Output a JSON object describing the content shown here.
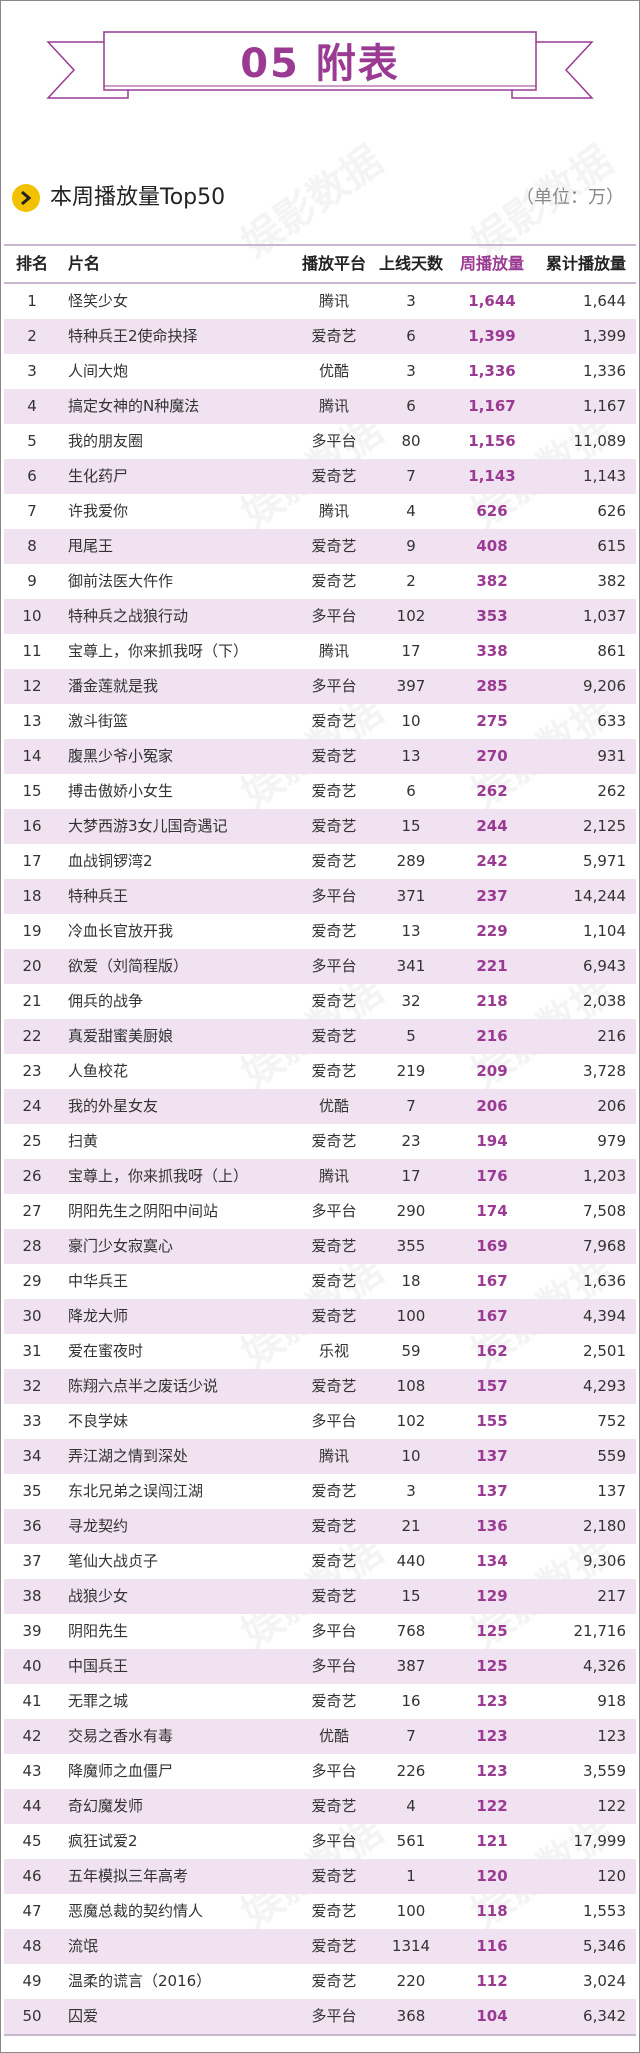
{
  "header": {
    "title": "05 附表"
  },
  "section": {
    "title": "本周播放量Top50",
    "unit": "（单位：万）"
  },
  "watermark": "娱影数据",
  "colors": {
    "accent": "#9b3a92",
    "row_alt": "#f0e2f1",
    "arrow": "#f2c200"
  },
  "table": {
    "columns": [
      "排名",
      "片名",
      "播放平台",
      "上线天数",
      "周播放量",
      "累计播放量"
    ],
    "rows": [
      [
        "1",
        "怪笑少女",
        "腾讯",
        "3",
        "1,644",
        "1,644"
      ],
      [
        "2",
        "特种兵王2使命抉择",
        "爱奇艺",
        "6",
        "1,399",
        "1,399"
      ],
      [
        "3",
        "人间大炮",
        "优酷",
        "3",
        "1,336",
        "1,336"
      ],
      [
        "4",
        "搞定女神的N种魔法",
        "腾讯",
        "6",
        "1,167",
        "1,167"
      ],
      [
        "5",
        "我的朋友圈",
        "多平台",
        "80",
        "1,156",
        "11,089"
      ],
      [
        "6",
        "生化药尸",
        "爱奇艺",
        "7",
        "1,143",
        "1,143"
      ],
      [
        "7",
        "许我爱你",
        "腾讯",
        "4",
        "626",
        "626"
      ],
      [
        "8",
        "甩尾王",
        "爱奇艺",
        "9",
        "408",
        "615"
      ],
      [
        "9",
        "御前法医大仵作",
        "爱奇艺",
        "2",
        "382",
        "382"
      ],
      [
        "10",
        "特种兵之战狼行动",
        "多平台",
        "102",
        "353",
        "1,037"
      ],
      [
        "11",
        "宝尊上，你来抓我呀（下）",
        "腾讯",
        "17",
        "338",
        "861"
      ],
      [
        "12",
        "潘金莲就是我",
        "多平台",
        "397",
        "285",
        "9,206"
      ],
      [
        "13",
        "激斗街篮",
        "爱奇艺",
        "10",
        "275",
        "633"
      ],
      [
        "14",
        "腹黑少爷小冤家",
        "爱奇艺",
        "13",
        "270",
        "931"
      ],
      [
        "15",
        "搏击傲娇小女生",
        "爱奇艺",
        "6",
        "262",
        "262"
      ],
      [
        "16",
        "大梦西游3女儿国奇遇记",
        "爱奇艺",
        "15",
        "244",
        "2,125"
      ],
      [
        "17",
        "血战铜锣湾2",
        "爱奇艺",
        "289",
        "242",
        "5,971"
      ],
      [
        "18",
        "特种兵王",
        "多平台",
        "371",
        "237",
        "14,244"
      ],
      [
        "19",
        "冷血长官放开我",
        "爱奇艺",
        "13",
        "229",
        "1,104"
      ],
      [
        "20",
        "欲爱（刘简程版）",
        "多平台",
        "341",
        "221",
        "6,943"
      ],
      [
        "21",
        "佣兵的战争",
        "爱奇艺",
        "32",
        "218",
        "2,038"
      ],
      [
        "22",
        "真爱甜蜜美厨娘",
        "爱奇艺",
        "5",
        "216",
        "216"
      ],
      [
        "23",
        "人鱼校花",
        "爱奇艺",
        "219",
        "209",
        "3,728"
      ],
      [
        "24",
        "我的外星女友",
        "优酷",
        "7",
        "206",
        "206"
      ],
      [
        "25",
        "扫黄",
        "爱奇艺",
        "23",
        "194",
        "979"
      ],
      [
        "26",
        "宝尊上，你来抓我呀（上）",
        "腾讯",
        "17",
        "176",
        "1,203"
      ],
      [
        "27",
        "阴阳先生之阴阳中间站",
        "多平台",
        "290",
        "174",
        "7,508"
      ],
      [
        "28",
        "豪门少女寂寞心",
        "爱奇艺",
        "355",
        "169",
        "7,968"
      ],
      [
        "29",
        "中华兵王",
        "爱奇艺",
        "18",
        "167",
        "1,636"
      ],
      [
        "30",
        "降龙大师",
        "爱奇艺",
        "100",
        "167",
        "4,394"
      ],
      [
        "31",
        "爱在蜜夜时",
        "乐视",
        "59",
        "162",
        "2,501"
      ],
      [
        "32",
        "陈翔六点半之废话少说",
        "爱奇艺",
        "108",
        "157",
        "4,293"
      ],
      [
        "33",
        "不良学妹",
        "多平台",
        "102",
        "155",
        "752"
      ],
      [
        "34",
        "弄江湖之情到深处",
        "腾讯",
        "10",
        "137",
        "559"
      ],
      [
        "35",
        "东北兄弟之误闯江湖",
        "爱奇艺",
        "3",
        "137",
        "137"
      ],
      [
        "36",
        "寻龙契约",
        "爱奇艺",
        "21",
        "136",
        "2,180"
      ],
      [
        "37",
        "笔仙大战贞子",
        "爱奇艺",
        "440",
        "134",
        "9,306"
      ],
      [
        "38",
        "战狼少女",
        "爱奇艺",
        "15",
        "129",
        "217"
      ],
      [
        "39",
        "阴阳先生",
        "多平台",
        "768",
        "125",
        "21,716"
      ],
      [
        "40",
        "中国兵王",
        "多平台",
        "387",
        "125",
        "4,326"
      ],
      [
        "41",
        "无罪之城",
        "爱奇艺",
        "16",
        "123",
        "918"
      ],
      [
        "42",
        "交易之香水有毒",
        "优酷",
        "7",
        "123",
        "123"
      ],
      [
        "43",
        "降魔师之血僵尸",
        "多平台",
        "226",
        "123",
        "3,559"
      ],
      [
        "44",
        "奇幻魔发师",
        "爱奇艺",
        "4",
        "122",
        "122"
      ],
      [
        "45",
        "疯狂试爱2",
        "多平台",
        "561",
        "121",
        "17,999"
      ],
      [
        "46",
        "五年模拟三年高考",
        "爱奇艺",
        "1",
        "120",
        "120"
      ],
      [
        "47",
        "恶魔总裁的契约情人",
        "爱奇艺",
        "100",
        "118",
        "1,553"
      ],
      [
        "48",
        "流氓",
        "爱奇艺",
        "1314",
        "116",
        "5,346"
      ],
      [
        "49",
        "温柔的谎言（2016）",
        "爱奇艺",
        "220",
        "112",
        "3,024"
      ],
      [
        "50",
        "囚爱",
        "多平台",
        "368",
        "104",
        "6,342"
      ]
    ]
  }
}
